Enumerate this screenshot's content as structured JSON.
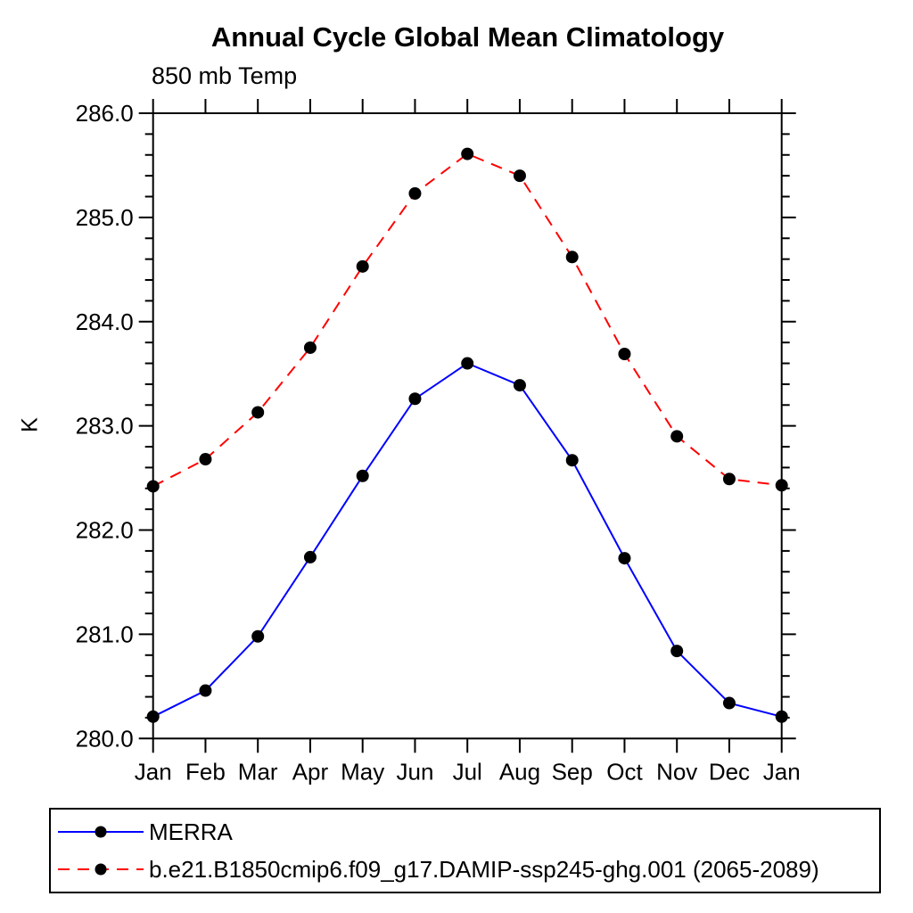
{
  "chart_data": {
    "type": "line",
    "title": "Annual Cycle Global Mean Climatology",
    "subtitle": "850 mb Temp",
    "ylabel": "K",
    "categories": [
      "Jan",
      "Feb",
      "Mar",
      "Apr",
      "May",
      "Jun",
      "Jul",
      "Aug",
      "Sep",
      "Oct",
      "Nov",
      "Dec",
      "Jan"
    ],
    "ylim": [
      280.0,
      286.0
    ],
    "ytick_major": 1.0,
    "ytick_minor": 0.2,
    "ytick_label_format_decimals": 1,
    "grid": false,
    "legend_position": "bottom",
    "frame_color": "#000000",
    "marker_color": "#000000",
    "series": [
      {
        "name": "MERRA",
        "color": "#0000ff",
        "line_style": "solid",
        "marker": "filled-circle",
        "values": [
          280.21,
          280.46,
          280.98,
          281.74,
          282.52,
          283.26,
          283.6,
          283.39,
          282.67,
          281.73,
          280.84,
          280.34,
          280.21
        ]
      },
      {
        "name": "b.e21.B1850cmip6.f09_g17.DAMIP-ssp245-ghg.001 (2065-2089)",
        "color": "#ff0000",
        "line_style": "dashed",
        "marker": "filled-circle",
        "values": [
          282.42,
          282.68,
          283.13,
          283.75,
          284.53,
          285.23,
          285.61,
          285.4,
          284.62,
          283.69,
          282.9,
          282.49,
          282.43
        ]
      }
    ]
  }
}
